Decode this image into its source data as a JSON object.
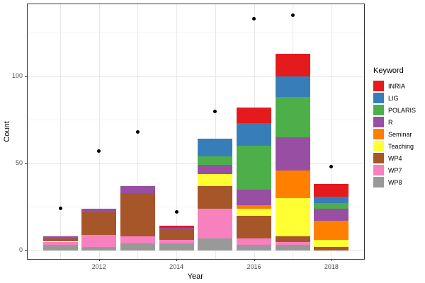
{
  "chart_data": {
    "type": "bar",
    "subtype": "stacked-bars-with-points",
    "title": "",
    "xlabel": "Year",
    "ylabel": "Count",
    "categories": [
      "2011",
      "2012",
      "2013",
      "2014",
      "2015",
      "2016",
      "2017",
      "2018"
    ],
    "x_tick_labels": [
      "2012",
      "2014",
      "2016",
      "2018"
    ],
    "y_ticks": [
      0,
      50,
      100
    ],
    "y_minor_gridlines": [
      25,
      75,
      125
    ],
    "ylim": [
      -7,
      142
    ],
    "grid": true,
    "legend_title": "Keyword",
    "legend_position": "right",
    "panel_background": "#ffffff",
    "point_color": "#000000",
    "series": [
      {
        "name": "INRIA",
        "color": "#E41A1C",
        "values": [
          0,
          0,
          0,
          1,
          0,
          9,
          13,
          7
        ]
      },
      {
        "name": "LIG",
        "color": "#377EB8",
        "values": [
          0,
          0,
          0,
          0,
          10,
          13,
          12,
          4
        ]
      },
      {
        "name": "POLARIS",
        "color": "#4DAF4A",
        "values": [
          0,
          0,
          0,
          0,
          5,
          25,
          23,
          3
        ]
      },
      {
        "name": "R",
        "color": "#984EA3",
        "values": [
          1,
          2,
          4,
          1,
          5,
          9,
          19,
          7
        ]
      },
      {
        "name": "Seminar",
        "color": "#FF7F00",
        "values": [
          0,
          0,
          0,
          0,
          0,
          2,
          16,
          11
        ]
      },
      {
        "name": "Teaching",
        "color": "#FFFF33",
        "values": [
          0,
          0,
          0,
          0,
          7,
          4,
          22,
          4
        ]
      },
      {
        "name": "WP4",
        "color": "#A65628",
        "values": [
          2,
          13,
          25,
          6,
          13,
          13,
          3,
          2
        ]
      },
      {
        "name": "WP7",
        "color": "#F781BF",
        "values": [
          2,
          7,
          4,
          2,
          17,
          4,
          2,
          0
        ]
      },
      {
        "name": "WP8",
        "color": "#999999",
        "values": [
          3,
          2,
          4,
          4,
          7,
          3,
          3,
          0
        ]
      }
    ],
    "stack_order_bottom_to_top": [
      "WP8",
      "WP7",
      "WP4",
      "Teaching",
      "Seminar",
      "R",
      "POLARIS",
      "LIG",
      "INRIA"
    ],
    "bar_totals": [
      8,
      24,
      37,
      14,
      64,
      82,
      113,
      38
    ],
    "points": [
      24,
      57,
      68,
      22,
      80,
      133,
      135,
      48
    ]
  }
}
